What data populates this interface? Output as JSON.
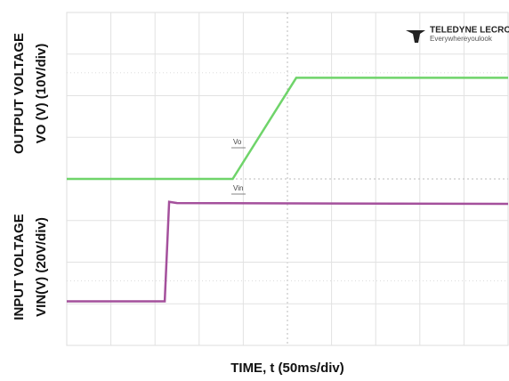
{
  "chart_data": {
    "type": "line",
    "y_labels": {
      "output_title": "OUTPUT VOLTAGE",
      "output_scale": "VO (V) (10V/div)",
      "input_title": "INPUT VOLTAGE",
      "input_scale": "VIN(V) (20V/div)"
    },
    "x_label": "TIME, t (50ms/div)",
    "logo": {
      "brand": "TELEDYNE LECROY",
      "tagline": "Everywhereyoulook"
    },
    "xlim": [
      0,
      500
    ],
    "ylim": [
      -4,
      4
    ],
    "series": [
      {
        "name": "Vo",
        "color": "#6fd46a",
        "x": [
          0,
          188,
          260,
          500
        ],
        "values": [
          0,
          0,
          2.43,
          2.43
        ]
      },
      {
        "name": "Vin",
        "color": "#a4509c",
        "x": [
          0,
          111,
          116,
          125,
          500
        ],
        "values": [
          -2.94,
          -2.94,
          -0.55,
          -0.58,
          -0.6
        ]
      }
    ]
  }
}
